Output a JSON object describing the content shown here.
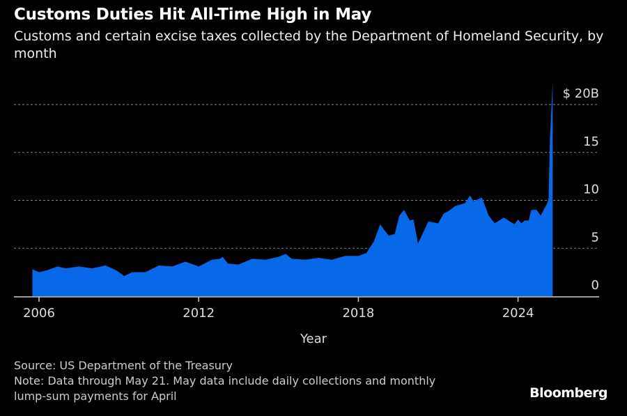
{
  "chart_data": {
    "type": "area",
    "title": "Customs Duties Hit All-Time High in May",
    "subtitle": "Customs and certain excise taxes collected by the Department of Homeland Security, by month",
    "xlabel": "Year",
    "ylabel": "",
    "xlim": [
      2005.2,
      2026.8
    ],
    "ylim": [
      0,
      20
    ],
    "x_ticks": [
      2006,
      2012,
      2018,
      2024
    ],
    "x_tick_labels": [
      "2006",
      "2012",
      "2018",
      "2024"
    ],
    "y_ticks": [
      0,
      5,
      10,
      15,
      20
    ],
    "y_tick_labels": [
      "0",
      "5",
      "10",
      "15",
      "$ 20B"
    ],
    "grid": true,
    "color": "#0768e8",
    "series": [
      {
        "name": "Customs and certain excise taxes ($B)",
        "x": [
          2005.75,
          2006.0,
          2006.3,
          2006.7,
          2007.0,
          2007.5,
          2008.0,
          2008.5,
          2008.9,
          2009.2,
          2009.5,
          2010.0,
          2010.5,
          2011.0,
          2011.5,
          2012.0,
          2012.5,
          2012.8,
          2012.9,
          2013.1,
          2013.5,
          2014.0,
          2014.5,
          2015.0,
          2015.27,
          2015.5,
          2016.0,
          2016.5,
          2017.0,
          2017.5,
          2018.0,
          2018.3,
          2018.58,
          2018.82,
          2019.0,
          2019.15,
          2019.37,
          2019.54,
          2019.72,
          2019.93,
          2020.07,
          2020.24,
          2020.63,
          2021.0,
          2021.2,
          2021.4,
          2021.64,
          2022.0,
          2022.2,
          2022.33,
          2022.64,
          2022.9,
          2023.12,
          2023.47,
          2023.86,
          2024.0,
          2024.12,
          2024.25,
          2024.4,
          2024.5,
          2024.7,
          2024.85,
          2024.98,
          2025.1,
          2025.15,
          2025.2,
          2025.3
        ],
        "values": [
          2.8,
          2.5,
          2.7,
          3.1,
          2.9,
          3.1,
          2.9,
          3.2,
          2.7,
          2.1,
          2.5,
          2.5,
          3.2,
          3.1,
          3.6,
          3.1,
          3.8,
          3.9,
          4.1,
          3.4,
          3.3,
          3.9,
          3.8,
          4.1,
          4.4,
          3.9,
          3.8,
          4.0,
          3.8,
          4.2,
          4.2,
          4.5,
          5.7,
          7.5,
          6.8,
          6.3,
          6.5,
          8.4,
          9.0,
          7.9,
          8.0,
          5.5,
          7.8,
          7.6,
          8.6,
          8.9,
          9.4,
          9.7,
          10.5,
          9.9,
          10.3,
          8.4,
          7.6,
          8.2,
          7.5,
          8.0,
          7.6,
          7.9,
          7.9,
          9.0,
          9.0,
          8.4,
          9.1,
          9.7,
          10.2,
          16.4,
          22.4
        ]
      }
    ]
  },
  "footer": {
    "source": "Source: US Department of the Treasury",
    "note_line1": "Note: Data through May 21. May data include daily collections and monthly",
    "note_line2": "lump-sum payments for April"
  },
  "logo": "Bloomberg"
}
